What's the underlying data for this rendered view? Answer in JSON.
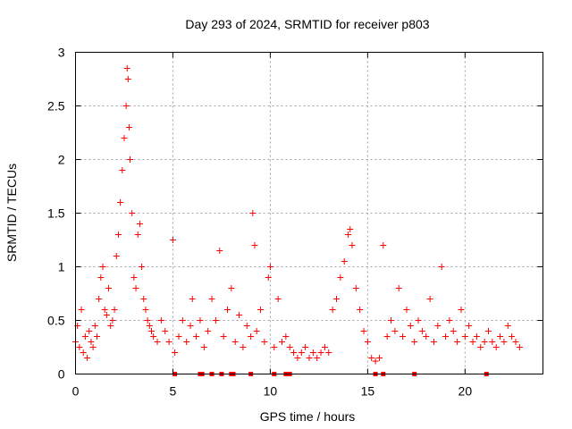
{
  "chart_data": {
    "type": "scatter",
    "title": "Day 293 of 2024, SRMTID for receiver p803",
    "xlabel": "GPS time / hours",
    "ylabel": "SRMTID / TECUs",
    "xlim": [
      0,
      24
    ],
    "ylim": [
      0,
      3
    ],
    "xticks": [
      0,
      5,
      10,
      15,
      20
    ],
    "yticks": [
      0,
      0.5,
      1,
      1.5,
      2,
      2.5,
      3
    ],
    "xtick_labels": [
      "0",
      "5",
      "10",
      "15",
      "20"
    ],
    "ytick_labels": [
      "0",
      "0.5",
      "1",
      "1.5",
      "2",
      "2.5",
      "3"
    ],
    "grid": true,
    "marker": "+",
    "series_color": "#ff0000",
    "series": [
      {
        "name": "SRMTID",
        "x": [
          0.0,
          0.1,
          0.2,
          0.3,
          0.4,
          0.5,
          0.6,
          0.7,
          0.8,
          0.9,
          1.0,
          1.1,
          1.2,
          1.3,
          1.4,
          1.5,
          1.6,
          1.7,
          1.8,
          1.9,
          2.0,
          2.1,
          2.2,
          2.3,
          2.4,
          2.5,
          2.6,
          2.65,
          2.7,
          2.75,
          2.8,
          2.9,
          3.0,
          3.1,
          3.2,
          3.3,
          3.4,
          3.5,
          3.6,
          3.7,
          3.8,
          3.9,
          4.0,
          4.2,
          4.4,
          4.6,
          4.8,
          5.0,
          5.1,
          5.3,
          5.5,
          5.7,
          5.9,
          6.0,
          6.2,
          6.4,
          6.6,
          6.8,
          7.0,
          7.2,
          7.4,
          7.6,
          7.8,
          8.0,
          8.2,
          8.4,
          8.6,
          8.8,
          9.0,
          9.1,
          9.2,
          9.3,
          9.5,
          9.7,
          9.9,
          10.0,
          10.2,
          10.4,
          10.6,
          10.8,
          11.0,
          11.2,
          11.4,
          11.6,
          11.8,
          12.0,
          12.2,
          12.4,
          12.6,
          12.8,
          13.0,
          13.2,
          13.4,
          13.6,
          13.8,
          14.0,
          14.1,
          14.2,
          14.4,
          14.6,
          14.8,
          15.0,
          15.2,
          15.4,
          15.6,
          15.8,
          16.0,
          16.2,
          16.4,
          16.6,
          16.8,
          17.0,
          17.2,
          17.4,
          17.6,
          17.8,
          18.0,
          18.2,
          18.4,
          18.6,
          18.8,
          19.0,
          19.2,
          19.4,
          19.6,
          19.8,
          20.0,
          20.2,
          20.4,
          20.6,
          20.8,
          21.0,
          21.2,
          21.4,
          21.6,
          21.8,
          22.0,
          22.2,
          22.4,
          22.6,
          22.8
        ],
        "y": [
          0.3,
          0.45,
          0.25,
          0.6,
          0.2,
          0.35,
          0.15,
          0.4,
          0.3,
          0.25,
          0.45,
          0.35,
          0.7,
          0.9,
          1.0,
          0.6,
          0.55,
          0.8,
          0.45,
          0.5,
          0.6,
          1.1,
          1.3,
          1.6,
          1.9,
          2.2,
          2.5,
          2.85,
          2.75,
          2.3,
          2.0,
          1.5,
          0.9,
          0.8,
          1.3,
          1.4,
          1.0,
          0.7,
          0.6,
          0.5,
          0.45,
          0.4,
          0.35,
          0.3,
          0.5,
          0.4,
          0.3,
          1.25,
          0.2,
          0.35,
          0.5,
          0.3,
          0.45,
          0.7,
          0.35,
          0.5,
          0.25,
          0.4,
          0.7,
          0.5,
          1.15,
          0.35,
          0.6,
          0.8,
          0.3,
          0.55,
          0.25,
          0.45,
          0.35,
          1.5,
          1.2,
          0.4,
          0.6,
          0.3,
          0.9,
          1.0,
          0.25,
          0.7,
          0.3,
          0.35,
          0.25,
          0.2,
          0.15,
          0.2,
          0.25,
          0.15,
          0.2,
          0.15,
          0.2,
          0.25,
          0.2,
          0.6,
          0.7,
          0.9,
          1.05,
          1.3,
          1.35,
          1.2,
          0.8,
          0.6,
          0.4,
          0.3,
          0.15,
          0.12,
          0.15,
          1.2,
          0.35,
          0.5,
          0.4,
          0.8,
          0.35,
          0.6,
          0.45,
          0.3,
          0.5,
          0.4,
          0.35,
          0.7,
          0.3,
          0.45,
          1.0,
          0.35,
          0.5,
          0.4,
          0.3,
          0.6,
          0.35,
          0.45,
          0.3,
          0.35,
          0.25,
          0.3,
          0.4,
          0.3,
          0.25,
          0.35,
          0.3,
          0.45,
          0.35,
          0.3,
          0.25
        ]
      }
    ],
    "flags_x": [
      5.1,
      6.4,
      6.5,
      7.0,
      7.5,
      8.0,
      8.1,
      9.0,
      10.2,
      10.8,
      11.0,
      15.4,
      15.8,
      17.4,
      21.1
    ]
  }
}
